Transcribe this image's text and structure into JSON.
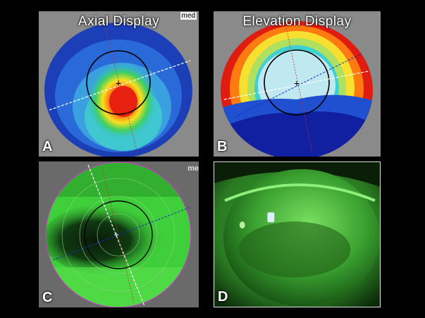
{
  "panels": {
    "a": {
      "title": "Axial Display",
      "letter": "A",
      "tag": "med"
    },
    "b": {
      "title": "Elevation Display",
      "letter": "B"
    },
    "c": {
      "letter": "C",
      "tag": "me"
    },
    "d": {
      "letter": "D"
    }
  },
  "colors": {
    "background": "#000000",
    "axial_blue": "#2a5fd0",
    "elevation_red": "#e01b10",
    "fluorescein_green": "#3fcf3a"
  }
}
